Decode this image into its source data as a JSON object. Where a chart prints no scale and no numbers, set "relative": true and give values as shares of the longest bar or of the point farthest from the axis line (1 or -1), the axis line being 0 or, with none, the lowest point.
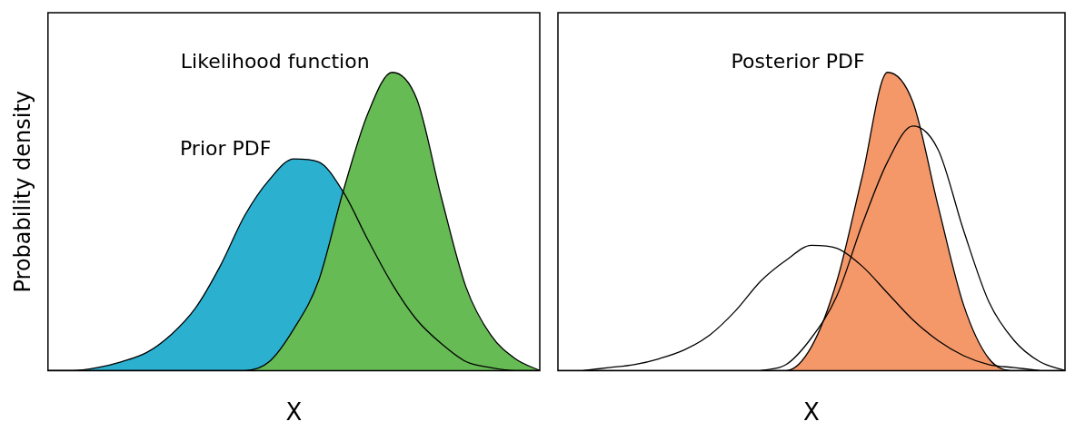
{
  "chart_data": [
    {
      "type": "area",
      "relative": true,
      "xlabel": "X",
      "ylabel": "Probability density",
      "legend": false,
      "grid": false,
      "categories": [
        null,
        null,
        null,
        null,
        null,
        null,
        null,
        null,
        null,
        null,
        null,
        null,
        null,
        null,
        null,
        null,
        null,
        null,
        null,
        null,
        null
      ],
      "series": [
        {
          "name": "Prior PDF",
          "color": "#2bb0d0",
          "values": [
            0,
            0,
            0.01,
            0.03,
            0.06,
            0.12,
            0.21,
            0.35,
            0.52,
            0.64,
            0.71,
            0.7,
            0.6,
            0.44,
            0.29,
            0.17,
            0.09,
            0.03,
            0.01,
            0,
            0
          ]
        },
        {
          "name": "Likelihood function",
          "color": "#66bb55",
          "values": [
            0,
            0,
            0,
            0,
            0,
            0,
            0,
            0,
            0,
            0.03,
            0.14,
            0.3,
            0.6,
            0.86,
            1.0,
            0.91,
            0.58,
            0.28,
            0.12,
            0.04,
            0
          ]
        }
      ]
    },
    {
      "type": "area",
      "relative": true,
      "xlabel": "X",
      "legend": false,
      "grid": false,
      "categories": [
        null,
        null,
        null,
        null,
        null,
        null,
        null,
        null,
        null,
        null,
        null,
        null,
        null,
        null,
        null,
        null,
        null,
        null,
        null,
        null,
        null
      ],
      "series": [
        {
          "type": "line",
          "color": "#000000",
          "values": [
            null,
            0,
            0.01,
            0.02,
            0.04,
            0.07,
            0.12,
            0.2,
            0.3,
            0.37,
            0.42,
            0.41,
            0.35,
            0.26,
            0.17,
            0.1,
            0.05,
            0.02,
            0.01,
            0,
            null
          ]
        },
        {
          "type": "line",
          "color": "#000000",
          "values": [
            null,
            null,
            null,
            null,
            null,
            null,
            null,
            null,
            0,
            0.02,
            0.11,
            0.25,
            0.49,
            0.7,
            0.82,
            0.74,
            0.47,
            0.23,
            0.1,
            0.03,
            0
          ]
        },
        {
          "name": "Posterior PDF",
          "color": "#f4986a",
          "values": [
            0,
            0,
            0,
            0,
            0,
            0,
            0,
            0,
            0,
            0,
            0.08,
            0.3,
            0.65,
            1.0,
            0.9,
            0.55,
            0.22,
            0.04,
            0,
            0,
            0
          ]
        }
      ]
    }
  ]
}
